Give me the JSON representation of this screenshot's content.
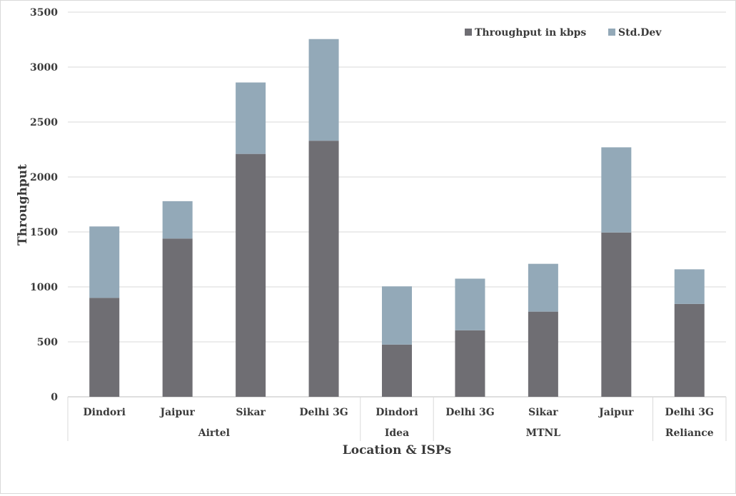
{
  "chart_data": {
    "type": "bar",
    "stacked": true,
    "title": "",
    "xlabel": "Location & ISPs",
    "ylabel": "Throughput",
    "ylim": [
      0,
      3500
    ],
    "yticks": [
      "0",
      "500",
      "1000",
      "1500",
      "2000",
      "2500",
      "3000",
      "3500"
    ],
    "grid": true,
    "legend_position": "top-right",
    "categories": [
      "Dindori",
      "Jaipur",
      "Sikar",
      "Delhi 3G",
      "Dindori",
      "Delhi 3G",
      "Sikar",
      "Jaipur",
      "Delhi 3G"
    ],
    "groups": [
      {
        "label": "Airtel",
        "count": 4
      },
      {
        "label": "Idea",
        "count": 1
      },
      {
        "label": "MTNL",
        "count": 3
      },
      {
        "label": "Reliance",
        "count": 1
      }
    ],
    "series": [
      {
        "name": "Throughput in kbps",
        "color": "#6f6e73",
        "values": [
          900,
          1440,
          2210,
          2330,
          475,
          605,
          775,
          1495,
          845
        ]
      },
      {
        "name": "Std.Dev",
        "color": "#93a9b8",
        "values": [
          650,
          340,
          650,
          925,
          530,
          470,
          435,
          775,
          315
        ]
      }
    ]
  }
}
